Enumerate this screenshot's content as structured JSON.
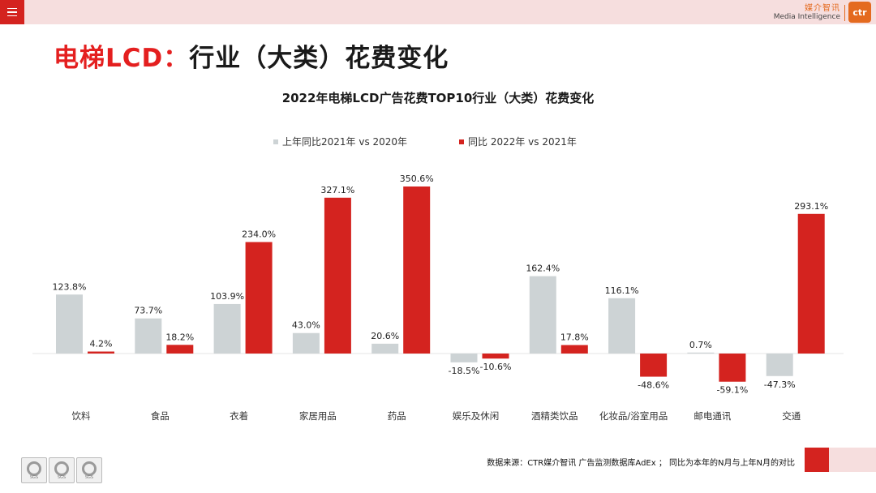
{
  "header": {
    "brand_cn": "媒介智讯",
    "brand_en": "Media Intelligence",
    "logo_text": "ctr"
  },
  "page_title": {
    "red_part": "电梯LCD：",
    "black_part": "行业（大类）花费变化"
  },
  "footer": {
    "source_note": "数据来源：CTR媒介智讯 广告监测数据库AdEx ；  同比为本年的N月与上年N月的对比",
    "badge_label": "SGS"
  },
  "colors": {
    "series1": "#cdd3d5",
    "series2": "#d4231f",
    "accent_red": "#e41f1f"
  },
  "chart_data": {
    "type": "bar",
    "title": "2022年电梯LCD广告花费TOP10行业（大类）花费变化",
    "xlabel": "",
    "ylabel": "",
    "categories": [
      "饮料",
      "食品",
      "衣着",
      "家居用品",
      "药品",
      "娱乐及休闲",
      "酒精类饮品",
      "化妆品/浴室用品",
      "邮电通讯",
      "交通"
    ],
    "series": [
      {
        "name": "上年同比2021年 vs 2020年",
        "values": [
          123.8,
          73.7,
          103.9,
          43.0,
          20.6,
          -18.5,
          162.4,
          116.1,
          0.7,
          -47.3
        ],
        "labels": [
          "123.8%",
          "73.7%",
          "103.9%",
          "43.0%",
          "20.6%",
          "-18.5%",
          "162.4%",
          "116.1%",
          "0.7%",
          "-47.3%"
        ]
      },
      {
        "name": "同比 2022年 vs 2021年",
        "values": [
          4.2,
          18.2,
          234.0,
          327.1,
          350.6,
          -10.6,
          17.8,
          -48.6,
          -59.1,
          293.1
        ],
        "labels": [
          "4.2%",
          "18.2%",
          "234.0%",
          "327.1%",
          "350.6%",
          "-10.6%",
          "17.8%",
          "-48.6%",
          "-59.1%",
          "293.1%"
        ]
      }
    ],
    "legend_position": "top-center",
    "grid": false
  }
}
